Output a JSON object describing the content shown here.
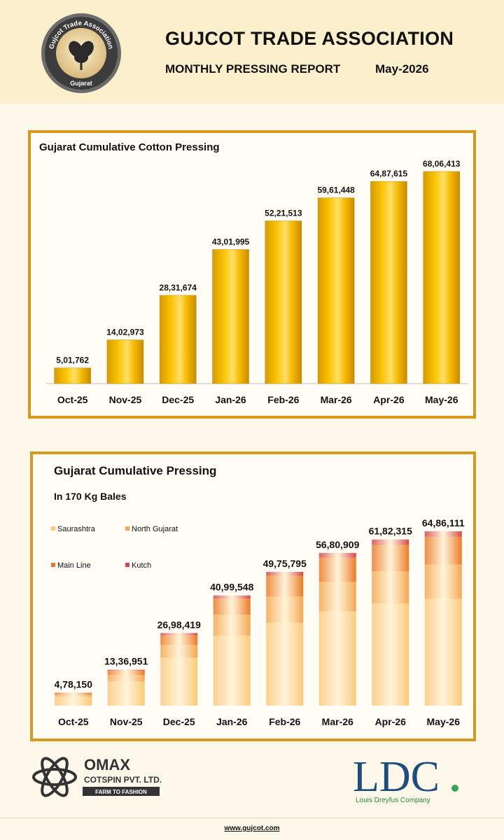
{
  "header": {
    "title": "GUJCOT TRADE ASSOCIATION",
    "subtitle": "MONTHLY PRESSING REPORT",
    "month": "May-2026",
    "logo_text_top": "Gujcot Trade Association",
    "logo_text_bottom": "Gujarat"
  },
  "chart_data": [
    {
      "type": "bar",
      "title": "Gujarat Cumulative Cotton Pressing",
      "categories": [
        "Oct-25",
        "Nov-25",
        "Dec-25",
        "Jan-26",
        "Feb-26",
        "Mar-26",
        "Apr-26",
        "May-26"
      ],
      "values": [
        501762,
        1402973,
        2831674,
        4301995,
        5221513,
        5961448,
        6487615,
        6806413
      ],
      "data_labels": [
        "5,01,762",
        "14,02,973",
        "28,31,674",
        "43,01,995",
        "52,21,513",
        "59,61,448",
        "64,87,615",
        "68,06,413"
      ],
      "ylim": [
        0,
        6806413
      ],
      "grid": false,
      "color": "#f2b705"
    },
    {
      "type": "bar",
      "stacked": true,
      "title": "Gujarat Cumulative Pressing",
      "subtitle": "In 170 Kg Bales",
      "categories": [
        "Oct-25",
        "Nov-25",
        "Dec-25",
        "Jan-26",
        "Feb-26",
        "Mar-26",
        "Apr-26",
        "May-26"
      ],
      "totals": [
        478150,
        1336951,
        2698419,
        4099548,
        4975795,
        5680909,
        6182315,
        6486111
      ],
      "total_labels": [
        "4,78,150",
        "13,36,951",
        "26,98,419",
        "40,99,548",
        "49,75,795",
        "56,80,909",
        "61,82,315",
        "64,86,111"
      ],
      "series": [
        {
          "name": "Saurashtra",
          "color": "#fcc97a",
          "values": [
            330000,
            900000,
            1780000,
            2600000,
            3080000,
            3500000,
            3800000,
            3980000
          ]
        },
        {
          "name": "North Gujarat",
          "color": "#f5a74f",
          "values": [
            80000,
            240000,
            480000,
            780000,
            980000,
            1100000,
            1200000,
            1270000
          ]
        },
        {
          "name": "Main Line",
          "color": "#ed7a22",
          "values": [
            52000,
            160000,
            350000,
            600000,
            770000,
            900000,
            980000,
            1030000
          ]
        },
        {
          "name": "Kutch",
          "color": "#d8474a",
          "values": [
            16150,
            36951,
            88419,
            119548,
            145795,
            180909,
            202315,
            206111
          ]
        }
      ],
      "ylim": [
        0,
        6486111
      ],
      "grid": false,
      "legend_position": "top-left"
    }
  ],
  "footer": {
    "omax_name": "OMAX",
    "omax_sub": "COTSPIN PVT. LTD.",
    "omax_tag": "FARM TO FASHION",
    "ldc_name": "LDC",
    "ldc_sub": "Louis Dreyfus Company",
    "url": "www.gujcot.com"
  }
}
